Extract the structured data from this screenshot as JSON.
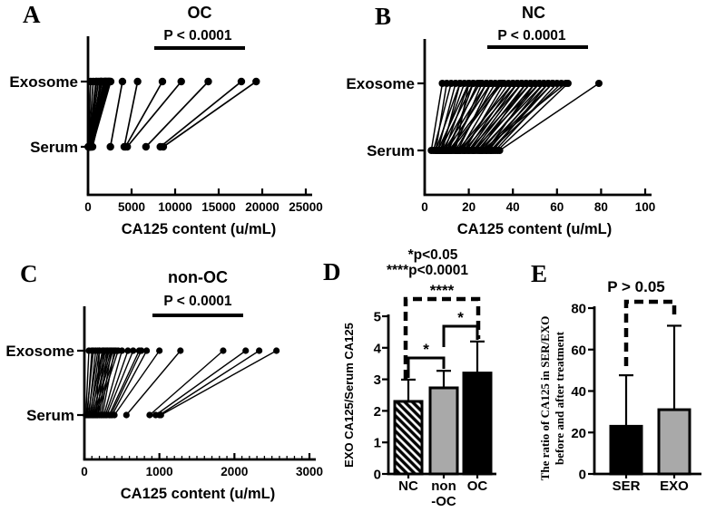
{
  "figure": {
    "letters": {
      "A": "A",
      "B": "B",
      "C": "C",
      "D": "D",
      "E": "E"
    }
  },
  "colors": {
    "ink": "#000000",
    "gray_bar": "#a9a9a9",
    "white": "#ffffff"
  },
  "chart_data": [
    {
      "panel": "A",
      "type": "paired-dot",
      "title": "OC",
      "p_label": "P < 0.0001",
      "rows": [
        "Exosome",
        "Serum"
      ],
      "xlabel": "CA125 content (u/mL)",
      "xlim": [
        0,
        25000
      ],
      "xticks": [
        0,
        5000,
        10000,
        15000,
        20000,
        25000
      ],
      "minor_tick_step": null,
      "pairs": [
        [
          30,
          300
        ],
        [
          60,
          600
        ],
        [
          90,
          900
        ],
        [
          120,
          1200
        ],
        [
          150,
          1500
        ],
        [
          180,
          1800
        ],
        [
          210,
          2100
        ],
        [
          240,
          2400
        ],
        [
          60,
          1500
        ],
        [
          100,
          2000
        ],
        [
          140,
          2500
        ],
        [
          40,
          1000
        ],
        [
          80,
          1900
        ],
        [
          160,
          2200
        ],
        [
          200,
          1600
        ],
        [
          260,
          2000
        ],
        [
          320,
          2400
        ],
        [
          380,
          1400
        ],
        [
          450,
          2600
        ],
        [
          520,
          2300
        ],
        [
          2570,
          3950
        ],
        [
          4160,
          5690
        ],
        [
          4300,
          8540
        ],
        [
          4500,
          10700
        ],
        [
          6650,
          13800
        ],
        [
          8300,
          17600
        ],
        [
          8640,
          19300
        ]
      ]
    },
    {
      "panel": "B",
      "type": "paired-dot",
      "title": "NC",
      "p_label": "P < 0.0001",
      "rows": [
        "Exosome",
        "Serum"
      ],
      "xlabel": "CA125 content (u/mL)",
      "xlim": [
        0,
        100
      ],
      "xticks": [
        0,
        20,
        40,
        60,
        80,
        100
      ],
      "minor_tick_step": null,
      "pairs": [
        [
          3,
          8
        ],
        [
          4,
          12
        ],
        [
          5,
          10
        ],
        [
          5,
          16
        ],
        [
          6,
          14
        ],
        [
          6,
          20
        ],
        [
          7,
          18
        ],
        [
          7,
          22
        ],
        [
          8,
          16
        ],
        [
          8,
          25
        ],
        [
          9,
          20
        ],
        [
          9,
          28
        ],
        [
          10,
          24
        ],
        [
          10,
          30
        ],
        [
          11,
          22
        ],
        [
          11,
          34
        ],
        [
          12,
          28
        ],
        [
          12,
          35
        ],
        [
          13,
          26
        ],
        [
          14,
          20
        ],
        [
          14,
          32
        ],
        [
          15,
          30
        ],
        [
          15,
          40
        ],
        [
          16,
          34
        ],
        [
          16,
          42
        ],
        [
          17,
          38
        ],
        [
          18,
          36
        ],
        [
          18,
          44
        ],
        [
          19,
          40
        ],
        [
          20,
          42
        ],
        [
          20,
          48
        ],
        [
          21,
          44
        ],
        [
          22,
          46
        ],
        [
          22,
          52
        ],
        [
          23,
          48
        ],
        [
          24,
          50
        ],
        [
          25,
          46
        ],
        [
          25,
          54
        ],
        [
          26,
          52
        ],
        [
          26,
          64
        ],
        [
          27,
          56
        ],
        [
          28,
          50
        ],
        [
          28,
          58
        ],
        [
          29,
          54
        ],
        [
          30,
          58
        ],
        [
          30,
          62
        ],
        [
          31,
          56
        ],
        [
          32,
          60
        ],
        [
          33,
          65
        ],
        [
          34,
          79
        ]
      ]
    },
    {
      "panel": "C",
      "type": "paired-dot",
      "title": "non-OC",
      "p_label": "P < 0.0001",
      "rows": [
        "Exosome",
        "Serum"
      ],
      "xlabel": "CA125 content (u/mL)",
      "xlim": [
        0,
        3000
      ],
      "xticks": [
        0,
        1000,
        2000,
        3000
      ],
      "minor_tick_step": 100,
      "pairs": [
        [
          20,
          60
        ],
        [
          40,
          100
        ],
        [
          60,
          150
        ],
        [
          80,
          200
        ],
        [
          100,
          250
        ],
        [
          120,
          300
        ],
        [
          140,
          350
        ],
        [
          30,
          120
        ],
        [
          50,
          180
        ],
        [
          70,
          240
        ],
        [
          90,
          280
        ],
        [
          110,
          330
        ],
        [
          130,
          380
        ],
        [
          150,
          420
        ],
        [
          160,
          200
        ],
        [
          180,
          260
        ],
        [
          200,
          310
        ],
        [
          220,
          360
        ],
        [
          240,
          400
        ],
        [
          170,
          450
        ],
        [
          260,
          500
        ],
        [
          280,
          580
        ],
        [
          300,
          650
        ],
        [
          330,
          730
        ],
        [
          350,
          760
        ],
        [
          370,
          830
        ],
        [
          400,
          1000
        ],
        [
          560,
          1280
        ],
        [
          870,
          1850
        ],
        [
          950,
          2150
        ],
        [
          1000,
          2330
        ],
        [
          1020,
          2560
        ]
      ]
    },
    {
      "panel": "D",
      "type": "bar",
      "note_lines": [
        "*p<0.05",
        "****p<0.0001"
      ],
      "ylabel": "EXO CA125/Serum CA125",
      "ylim": [
        0,
        5
      ],
      "yticks": [
        0,
        1,
        2,
        3,
        4,
        5
      ],
      "categories": [
        [
          "NC"
        ],
        [
          "non",
          "-OC"
        ],
        [
          "OC"
        ]
      ],
      "values": [
        2.3,
        2.73,
        3.2
      ],
      "errors_up": [
        0.69,
        0.54,
        1.0
      ],
      "bar_styles": [
        "hatched",
        "gray",
        "black"
      ],
      "comparisons": [
        {
          "from": 0,
          "to": 1,
          "label": "*",
          "style": "solid"
        },
        {
          "from": 1,
          "to": 2,
          "label": "*",
          "style": "solid"
        },
        {
          "from": 0,
          "to": 2,
          "label": "****",
          "style": "dashed"
        }
      ]
    },
    {
      "panel": "E",
      "type": "bar",
      "p_label": "P > 0.05",
      "ylabel_lines": [
        "The ratio of CA125 in SER/EXO",
        "before and after treatment"
      ],
      "ylim": [
        0,
        80
      ],
      "yticks": [
        0,
        20,
        40,
        60,
        80
      ],
      "categories": [
        [
          "SER"
        ],
        [
          "EXO"
        ]
      ],
      "values": [
        23,
        31
      ],
      "errors_up": [
        24.6,
        40.5
      ],
      "bar_styles": [
        "black",
        "gray"
      ],
      "comparisons": [
        {
          "from": 0,
          "to": 1,
          "label": "",
          "style": "dashed"
        }
      ]
    }
  ]
}
